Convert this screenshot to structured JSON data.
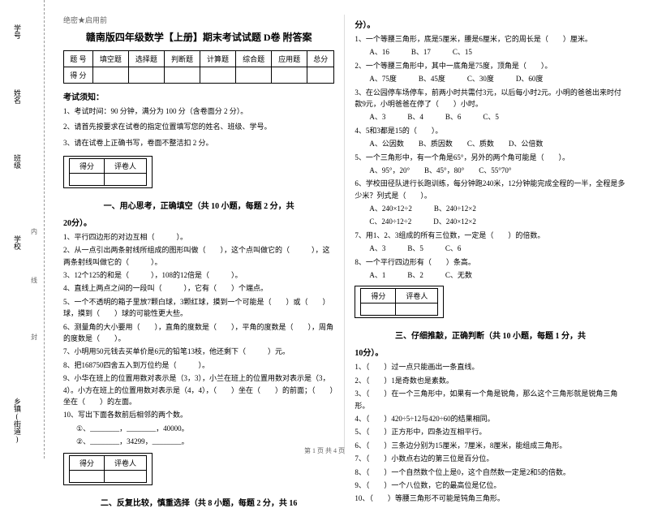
{
  "margin": {
    "labels": [
      "学号",
      "姓名",
      "班级",
      "学校",
      "乡镇(街道)"
    ],
    "dots": [
      "内",
      "线",
      "封"
    ]
  },
  "header_tag": "绝密★启用前",
  "title": "赣南版四年级数学【上册】期末考试试题 D卷 附答案",
  "score_table": {
    "row1": [
      "题 号",
      "填空题",
      "选择题",
      "判断题",
      "计算题",
      "综合题",
      "应用题",
      "总分"
    ],
    "row2": [
      "得 分",
      "",
      "",
      "",
      "",
      "",
      "",
      ""
    ]
  },
  "notice_head": "考试须知：",
  "notices": [
    "1、考试时间：90 分钟，满分为 100 分（含卷面分 2 分）。",
    "2、请首先按要求在试卷的指定位置填写您的姓名、班级、学号。",
    "3、请在试卷上正确书写，卷面不整洁扣 2 分。"
  ],
  "score_mini": {
    "c1": "得分",
    "c2": "评卷人"
  },
  "sec1_title": "一、用心思考，正确填空（共 10 小题，每题 2 分，共",
  "sec1_title_b": "20分）。",
  "sec1_q": [
    "1、平行四边形的对边互相（　　　）。",
    "2、从一点引出两条射线所组成的图形叫做（　　），这个点叫做它的（　　　），这两条射线叫做它的（　　　）。",
    "3、12个125的和是（　　　），108的12倍是（　　　）。",
    "4、直线上两点之间的一段叫（　　　），它有（　　）个端点。",
    "5、一个不透明的箱子里放7颗白球，3颗红球，摸到一个可能是（　　）或（　　）球，摸到（　　）球的可能性更大些。",
    "6、测量角的大小要用（　　），直角的度数是（　　），平角的度数是（　　），周角的度数是（　　）。",
    "7、小明用50元钱去买单价是6元的铅笔13枝，他还剩下（　　　）元。",
    "8、把168750四舍五入到万位约是（　　　）。",
    "9、小华在班上的位置用数对表示是（3，3），小兰在班上的位置用数对表示是（3，4）。小方在班上的位置用数对表示是（4，4），（　　）坐在（　　）的前面；（　　）坐在（　　）的左面。",
    "10、写出下面各数前后相邻的两个数。"
  ],
  "sec1_sub": [
    "①、________，________，40000。",
    "②、________，34299，________。"
  ],
  "sec2_title": "二、反复比较，慎重选择（共 8 小题，每题 2 分，共 16",
  "sec2_title_r": "分）。",
  "sec2_q": [
    "1、一个等腰三角形，底是5厘米，腰是6厘米，它的周长是（　　）厘米。",
    "　　A、16　　　B、17　　　C、15",
    "2、一个等腰三角形中，其中一底角是75度，顶角是（　　）。",
    "　　A、75度　　　B、45度　　　C、30度　　　D、60度",
    "3、在公园停车场停车，前两小时共需付3元，以后每小时2元。小明的爸爸出来时付款9元，小明爸爸在停了（　　）小时。",
    "　　A、3　　　B、4　　　B、6　　　C、5",
    "4、5和3都是15的（　　）。",
    "　　A、公因数　　B、质因数　　C、质数　　D、公倍数",
    "5、一个三角形中，有一个角是65°，另外的两个角可能是（　　）。",
    "　　A、95°，20°　　B、45°，80°　　C、55°70°",
    "6、学校田径队进行长跑训练，每分钟跑240米，12分钟能完成全程的一半，全程是多少米？列式是（　　）。",
    "　　A、240×12÷2　　　B、240÷12×2",
    "　　C、240÷12÷2　　　D、240×12×2",
    "7、用1、2、3组成的所有三位数，一定是（　　）的倍数。",
    "　　A、3　　　B、5　　　C、6",
    "8、一个平行四边形有（　　）条高。",
    "　　A、1　　　B、2　　　C、无数"
  ],
  "sec3_title": "三、仔细推敲，正确判断（共 10 小题，每题 1 分，共",
  "sec3_title_b": "10分）。",
  "sec3_q": [
    "1、（　　）过一点只能画出一条直线。",
    "2、（　　）1是奇数也是素数。",
    "3、（　　）在一个三角形中，如果有一个角是锐角，那么这个三角形就是锐角三角形。",
    "4、（　　）420÷5÷12与420÷60的结果相同。",
    "5、（　　）正方形中，四条边互相平行。",
    "6、（　　）三条边分别为15厘米，7厘米，8厘米，能组成三角形。",
    "7、（　　）小数点右边的第三位是百分位。",
    "8、（　　）一个自然数个位上是0，这个自然数一定是2和5的倍数。",
    "9、（　　）一个八位数，它的最高位是亿位。",
    "10、（　　）等腰三角形不可能是钝角三角形。"
  ],
  "footer": "第 1 页 共 4 页"
}
